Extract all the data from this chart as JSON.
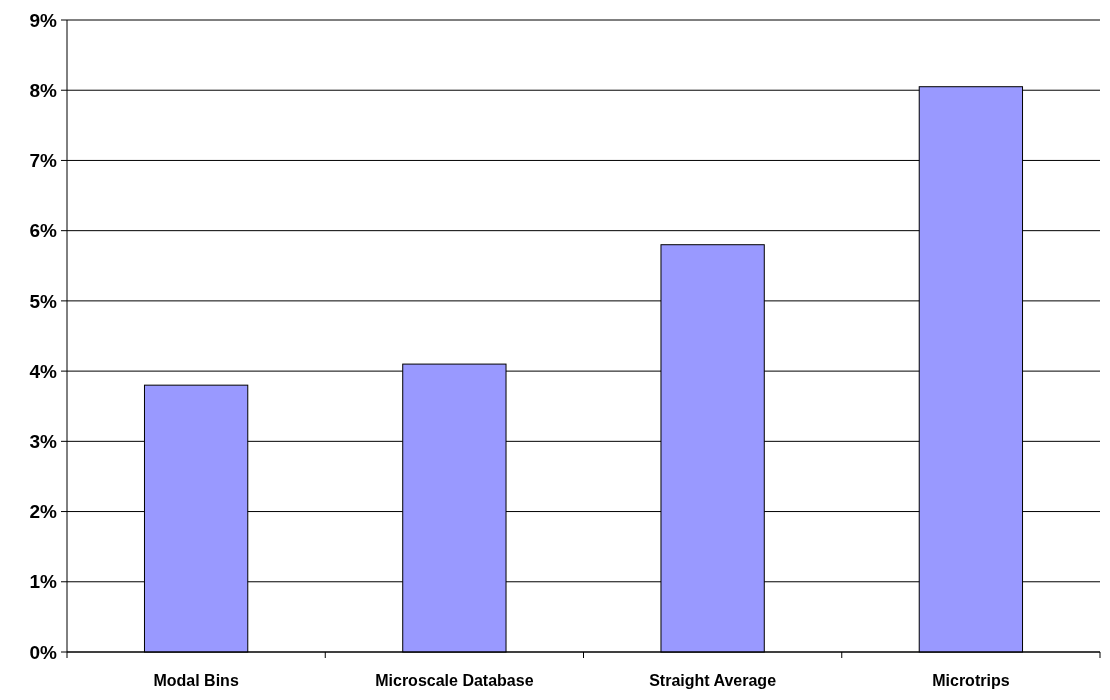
{
  "chart_data": {
    "type": "bar",
    "categories": [
      "Modal Bins",
      "Microscale Database",
      "Straight Average",
      "Microtrips"
    ],
    "values": [
      3.8,
      4.1,
      5.8,
      8.05
    ],
    "color": "#9999ff",
    "ylim": [
      0,
      9
    ],
    "yticks": [
      {
        "value": 0,
        "label": "0%"
      },
      {
        "value": 1,
        "label": "1%"
      },
      {
        "value": 2,
        "label": "2%"
      },
      {
        "value": 3,
        "label": "3%"
      },
      {
        "value": 4,
        "label": "4%"
      },
      {
        "value": 5,
        "label": "5%"
      },
      {
        "value": 6,
        "label": "6%"
      },
      {
        "value": 7,
        "label": "7%"
      },
      {
        "value": 8,
        "label": "8%"
      },
      {
        "value": 9,
        "label": "9%"
      }
    ],
    "grid": "y"
  }
}
